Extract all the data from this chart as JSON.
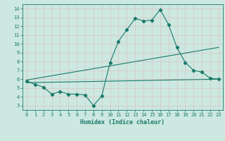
{
  "xlabel": "Humidex (Indice chaleur)",
  "bg_color": "#cce8e0",
  "grid_color": "#d8c8c8",
  "line_color": "#1a7a6a",
  "xlim": [
    -0.5,
    23.5
  ],
  "ylim": [
    2.5,
    14.5
  ],
  "xticks": [
    0,
    1,
    2,
    3,
    4,
    5,
    6,
    7,
    8,
    9,
    10,
    11,
    12,
    13,
    14,
    15,
    16,
    17,
    18,
    19,
    20,
    21,
    22,
    23
  ],
  "yticks": [
    3,
    4,
    5,
    6,
    7,
    8,
    9,
    10,
    11,
    12,
    13,
    14
  ],
  "line1_x": [
    0,
    1,
    2,
    3,
    4,
    5,
    6,
    7,
    8,
    9,
    10,
    11,
    12,
    13,
    14,
    15,
    16,
    17,
    18,
    19,
    20,
    21,
    22,
    23
  ],
  "line1_y": [
    5.8,
    5.4,
    5.1,
    4.3,
    4.6,
    4.3,
    4.3,
    4.2,
    3.0,
    4.1,
    7.9,
    10.3,
    11.6,
    12.9,
    12.6,
    12.7,
    13.9,
    12.2,
    9.6,
    7.9,
    7.0,
    6.8,
    6.1,
    6.0
  ],
  "line2_x": [
    0,
    23
  ],
  "line2_y": [
    5.9,
    9.6
  ],
  "line3_x": [
    0,
    23
  ],
  "line3_y": [
    5.6,
    6.0
  ],
  "marker": "D",
  "marker_size": 2.2
}
